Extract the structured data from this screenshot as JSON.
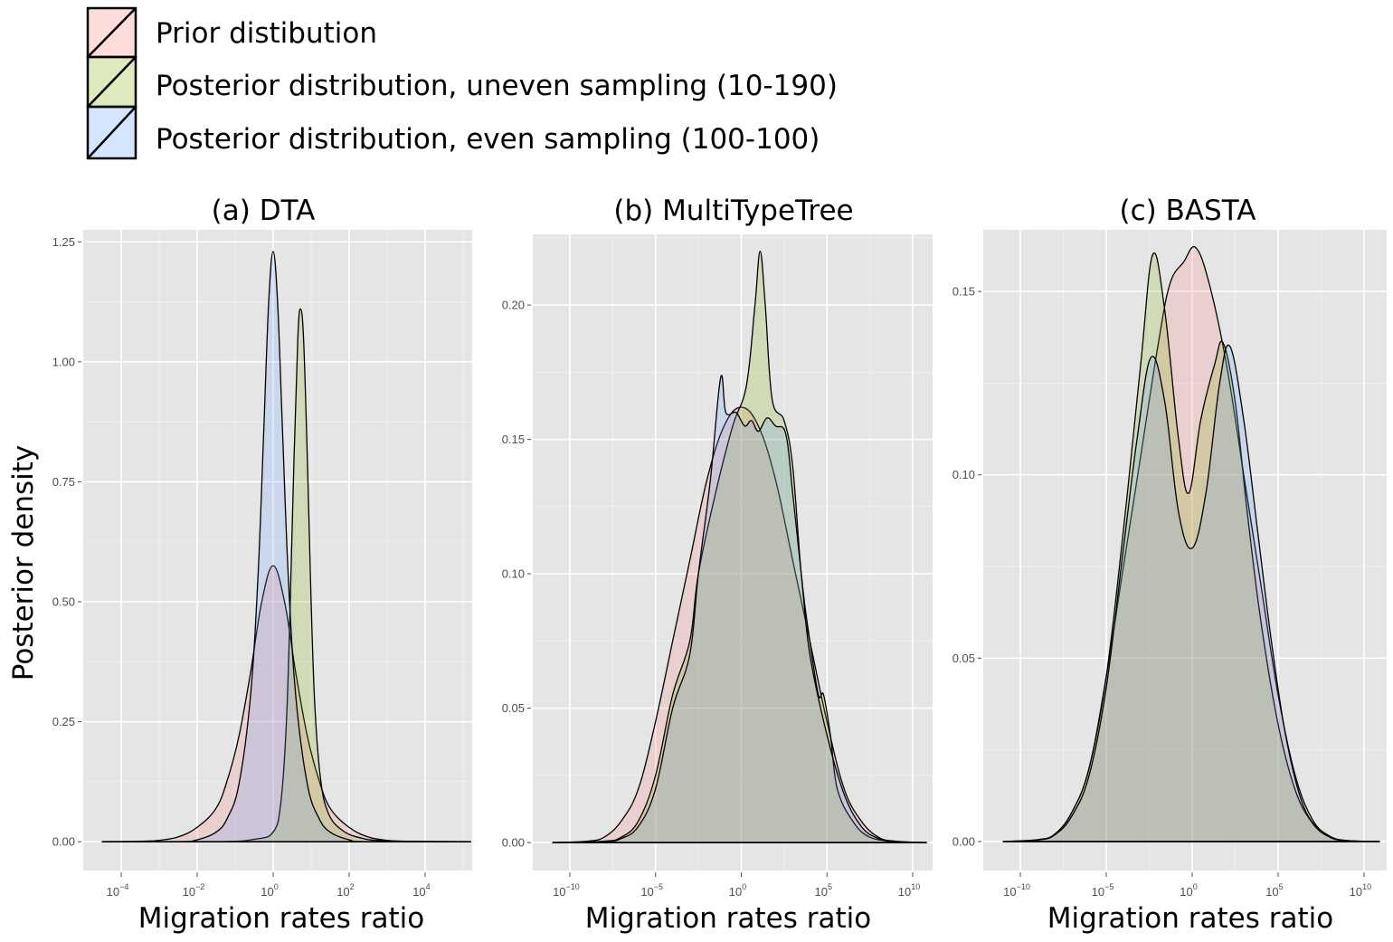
{
  "legend": {
    "position": "top-left",
    "items": [
      {
        "key": "prior",
        "label": "Prior distibution",
        "color": "#F8766D"
      },
      {
        "key": "uneven",
        "label": "Posterior distribution, uneven sampling (10-190)",
        "color": "#7CAE00"
      },
      {
        "key": "even",
        "label": "Posterior distribution, even sampling (100-100)",
        "color": "#619CFF"
      }
    ]
  },
  "shared": {
    "ylabel": "Posterior density",
    "xlabel": "Migration rates ratio",
    "fill_opacity": 0.2,
    "panel_background": "#E5E5E5",
    "grid_color": "#FFFFFF"
  },
  "chart_data": [
    {
      "type": "area",
      "title": "(a) DTA",
      "xlabel": "Migration rates ratio",
      "ylabel": "Posterior density",
      "xscale": "log10",
      "xlim_log10": [
        -5.0,
        5.24
      ],
      "ylim": [
        -0.06,
        1.275
      ],
      "grid": true,
      "xticks_log10": [
        -4,
        -2,
        0,
        2,
        4
      ],
      "xtick_labels": [
        {
          "base": "10",
          "exp": "−4"
        },
        {
          "base": "10",
          "exp": "−2"
        },
        {
          "base": "10",
          "exp": "0"
        },
        {
          "base": "10",
          "exp": "2"
        },
        {
          "base": "10",
          "exp": "4"
        }
      ],
      "yticks": [
        0.0,
        0.25,
        0.5,
        0.75,
        1.0,
        1.25
      ],
      "ytick_labels": [
        "0.00",
        "0.25",
        "0.50",
        "0.75",
        "1.00",
        "1.25"
      ],
      "series": [
        {
          "name": "Prior distribution",
          "key": "prior",
          "points": [
            [
              -4.5,
              0
            ],
            [
              -3.5,
              0.001
            ],
            [
              -3,
              0.003
            ],
            [
              -2.5,
              0.01
            ],
            [
              -2,
              0.03
            ],
            [
              -1.5,
              0.07
            ],
            [
              -1.2,
              0.13
            ],
            [
              -0.9,
              0.22
            ],
            [
              -0.6,
              0.35
            ],
            [
              -0.3,
              0.5
            ],
            [
              0,
              0.575
            ],
            [
              0.3,
              0.5
            ],
            [
              0.6,
              0.35
            ],
            [
              0.9,
              0.22
            ],
            [
              1.2,
              0.13
            ],
            [
              1.5,
              0.07
            ],
            [
              2,
              0.03
            ],
            [
              2.5,
              0.01
            ],
            [
              3,
              0.003
            ],
            [
              3.5,
              0.001
            ],
            [
              5.2,
              0
            ]
          ]
        },
        {
          "name": "Posterior distribution, uneven sampling (10-190)",
          "key": "uneven",
          "points": [
            [
              -4.5,
              0
            ],
            [
              -1.5,
              0
            ],
            [
              -0.5,
              0.005
            ],
            [
              0,
              0.02
            ],
            [
              0.2,
              0.08
            ],
            [
              0.35,
              0.25
            ],
            [
              0.45,
              0.5
            ],
            [
              0.55,
              0.8
            ],
            [
              0.65,
              1.05
            ],
            [
              0.72,
              1.11
            ],
            [
              0.8,
              1.05
            ],
            [
              0.9,
              0.8
            ],
            [
              1.0,
              0.5
            ],
            [
              1.1,
              0.28
            ],
            [
              1.25,
              0.13
            ],
            [
              1.45,
              0.06
            ],
            [
              1.8,
              0.025
            ],
            [
              2.3,
              0.008
            ],
            [
              3,
              0.002
            ],
            [
              5.2,
              0
            ]
          ]
        },
        {
          "name": "Posterior distribution, even sampling (100-100)",
          "key": "even",
          "points": [
            [
              -4.5,
              0
            ],
            [
              -2.5,
              0
            ],
            [
              -2,
              0.004
            ],
            [
              -1.5,
              0.02
            ],
            [
              -1.2,
              0.05
            ],
            [
              -0.9,
              0.12
            ],
            [
              -0.6,
              0.3
            ],
            [
              -0.4,
              0.55
            ],
            [
              -0.25,
              0.85
            ],
            [
              -0.12,
              1.12
            ],
            [
              0,
              1.23
            ],
            [
              0.12,
              1.12
            ],
            [
              0.25,
              0.85
            ],
            [
              0.4,
              0.55
            ],
            [
              0.6,
              0.3
            ],
            [
              0.9,
              0.12
            ],
            [
              1.2,
              0.05
            ],
            [
              1.5,
              0.02
            ],
            [
              2,
              0.004
            ],
            [
              2.5,
              0
            ],
            [
              5.2,
              0
            ]
          ]
        }
      ]
    },
    {
      "type": "area",
      "title": "(b) MultiTypeTree",
      "xlabel": "Migration rates ratio",
      "ylabel": "",
      "xscale": "log10",
      "xlim_log10": [
        -12.16,
        11.16
      ],
      "ylim": [
        -0.0104,
        0.2263
      ],
      "grid": true,
      "xticks_log10": [
        -10,
        -5,
        0,
        5,
        10
      ],
      "xtick_labels": [
        {
          "base": "10",
          "exp": "−10"
        },
        {
          "base": "10",
          "exp": "−5"
        },
        {
          "base": "10",
          "exp": "0"
        },
        {
          "base": "10",
          "exp": "5"
        },
        {
          "base": "10",
          "exp": "10"
        }
      ],
      "yticks": [
        0.0,
        0.05,
        0.1,
        0.15,
        0.2
      ],
      "ytick_labels": [
        "0.00",
        "0.05",
        "0.10",
        "0.15",
        "0.20"
      ],
      "series": [
        {
          "name": "Prior distribution",
          "key": "prior",
          "points": [
            [
              -11,
              0
            ],
            [
              -9,
              0.0005
            ],
            [
              -8,
              0.002
            ],
            [
              -7,
              0.008
            ],
            [
              -6,
              0.02
            ],
            [
              -5,
              0.045
            ],
            [
              -4,
              0.075
            ],
            [
              -3,
              0.105
            ],
            [
              -2,
              0.135
            ],
            [
              -1,
              0.155
            ],
            [
              0,
              0.162
            ],
            [
              1,
              0.155
            ],
            [
              2,
              0.135
            ],
            [
              3,
              0.105
            ],
            [
              4,
              0.075
            ],
            [
              5,
              0.045
            ],
            [
              6,
              0.02
            ],
            [
              7,
              0.008
            ],
            [
              8,
              0.002
            ],
            [
              9,
              0.0005
            ],
            [
              10.8,
              0
            ]
          ]
        },
        {
          "name": "Posterior distribution, uneven sampling (10-190)",
          "key": "uneven",
          "points": [
            [
              -11,
              0
            ],
            [
              -8,
              0.0005
            ],
            [
              -7,
              0.002
            ],
            [
              -6,
              0.008
            ],
            [
              -5,
              0.025
            ],
            [
              -4,
              0.055
            ],
            [
              -3,
              0.075
            ],
            [
              -2.5,
              0.1
            ],
            [
              -1.5,
              0.13
            ],
            [
              -0.5,
              0.155
            ],
            [
              0.3,
              0.17
            ],
            [
              0.8,
              0.2
            ],
            [
              1.1,
              0.22
            ],
            [
              1.4,
              0.2
            ],
            [
              1.8,
              0.165
            ],
            [
              2.5,
              0.157
            ],
            [
              3,
              0.14
            ],
            [
              3.5,
              0.1
            ],
            [
              4,
              0.075
            ],
            [
              4.5,
              0.055
            ],
            [
              4.8,
              0.055
            ],
            [
              5.2,
              0.04
            ],
            [
              5.6,
              0.02
            ],
            [
              6.5,
              0.008
            ],
            [
              7.5,
              0.002
            ],
            [
              9,
              0.0005
            ],
            [
              10.8,
              0
            ]
          ]
        },
        {
          "name": "Posterior distribution, even sampling (100-100)",
          "key": "even",
          "points": [
            [
              -11,
              0
            ],
            [
              -8,
              0.0003
            ],
            [
              -7,
              0.0015
            ],
            [
              -6,
              0.006
            ],
            [
              -5,
              0.02
            ],
            [
              -4,
              0.05
            ],
            [
              -3,
              0.07
            ],
            [
              -2.5,
              0.1
            ],
            [
              -1.8,
              0.135
            ],
            [
              -1.2,
              0.173
            ],
            [
              -0.9,
              0.16
            ],
            [
              -0.3,
              0.16
            ],
            [
              0.2,
              0.155
            ],
            [
              0.6,
              0.157
            ],
            [
              1,
              0.153
            ],
            [
              1.5,
              0.158
            ],
            [
              2,
              0.155
            ],
            [
              2.6,
              0.152
            ],
            [
              3,
              0.13
            ],
            [
              3.5,
              0.1
            ],
            [
              4,
              0.07
            ],
            [
              5,
              0.04
            ],
            [
              6,
              0.018
            ],
            [
              7,
              0.006
            ],
            [
              8,
              0.0015
            ],
            [
              9,
              0.0003
            ],
            [
              10.8,
              0
            ]
          ]
        }
      ]
    },
    {
      "type": "area",
      "title": "(c) BASTA",
      "xlabel": "Migration rates ratio",
      "ylabel": "",
      "xscale": "log10",
      "xlim_log10": [
        -12.16,
        11.32
      ],
      "ylim": [
        -0.0079,
        0.1668
      ],
      "grid": true,
      "xticks_log10": [
        -10,
        -5,
        0,
        5,
        10
      ],
      "xtick_labels": [
        {
          "base": "10",
          "exp": "−10"
        },
        {
          "base": "10",
          "exp": "−5"
        },
        {
          "base": "10",
          "exp": "0"
        },
        {
          "base": "10",
          "exp": "5"
        },
        {
          "base": "10",
          "exp": "10"
        }
      ],
      "yticks": [
        0.0,
        0.05,
        0.1,
        0.15
      ],
      "ytick_labels": [
        "0.00",
        "0.05",
        "0.10",
        "0.15"
      ],
      "series": [
        {
          "name": "Prior distribution",
          "key": "prior",
          "points": [
            [
              -11,
              0
            ],
            [
              -9,
              0.0005
            ],
            [
              -8,
              0.002
            ],
            [
              -7,
              0.008
            ],
            [
              -6,
              0.02
            ],
            [
              -5,
              0.045
            ],
            [
              -4,
              0.075
            ],
            [
              -3,
              0.105
            ],
            [
              -2,
              0.135
            ],
            [
              -1.3,
              0.152
            ],
            [
              -0.5,
              0.158
            ],
            [
              0.2,
              0.162
            ],
            [
              1,
              0.152
            ],
            [
              2,
              0.13
            ],
            [
              3,
              0.1
            ],
            [
              4,
              0.07
            ],
            [
              5,
              0.04
            ],
            [
              6,
              0.018
            ],
            [
              7,
              0.006
            ],
            [
              8,
              0.0015
            ],
            [
              9,
              0.0003
            ],
            [
              10.9,
              0
            ]
          ]
        },
        {
          "name": "Posterior distribution, uneven sampling (10-190)",
          "key": "uneven",
          "points": [
            [
              -11,
              0
            ],
            [
              -9,
              0.0005
            ],
            [
              -8,
              0.002
            ],
            [
              -7,
              0.008
            ],
            [
              -6,
              0.02
            ],
            [
              -5,
              0.045
            ],
            [
              -4,
              0.085
            ],
            [
              -3,
              0.13
            ],
            [
              -2.3,
              0.16
            ],
            [
              -1.6,
              0.145
            ],
            [
              -0.8,
              0.11
            ],
            [
              -0.2,
              0.095
            ],
            [
              0.5,
              0.115
            ],
            [
              1.3,
              0.13
            ],
            [
              1.8,
              0.136
            ],
            [
              2.5,
              0.12
            ],
            [
              3.2,
              0.09
            ],
            [
              4,
              0.06
            ],
            [
              5,
              0.032
            ],
            [
              6,
              0.014
            ],
            [
              7,
              0.005
            ],
            [
              8,
              0.0012
            ],
            [
              9,
              0.0002
            ],
            [
              10.9,
              0
            ]
          ]
        },
        {
          "name": "Posterior distribution, even sampling (100-100)",
          "key": "even",
          "points": [
            [
              -11,
              0
            ],
            [
              -9,
              0.0004
            ],
            [
              -8,
              0.0018
            ],
            [
              -7,
              0.007
            ],
            [
              -6,
              0.018
            ],
            [
              -5,
              0.042
            ],
            [
              -4,
              0.08
            ],
            [
              -3.2,
              0.11
            ],
            [
              -2.4,
              0.132
            ],
            [
              -1.6,
              0.12
            ],
            [
              -0.8,
              0.09
            ],
            [
              0,
              0.08
            ],
            [
              0.8,
              0.095
            ],
            [
              1.6,
              0.125
            ],
            [
              2.2,
              0.135
            ],
            [
              3,
              0.115
            ],
            [
              3.8,
              0.085
            ],
            [
              4.6,
              0.055
            ],
            [
              5.4,
              0.03
            ],
            [
              6.3,
              0.012
            ],
            [
              7.2,
              0.004
            ],
            [
              8.2,
              0.001
            ],
            [
              9.2,
              0.0002
            ],
            [
              10.9,
              0
            ]
          ]
        }
      ]
    }
  ]
}
